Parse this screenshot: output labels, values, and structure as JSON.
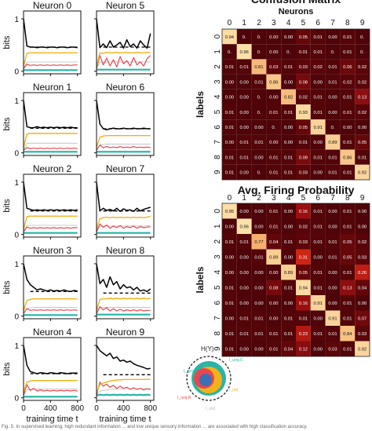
{
  "chart_data": [
    {
      "type": "line",
      "grid": "2x5 small multiples",
      "xlabel": "training time t",
      "ylabel": "bits",
      "xticks": [
        0,
        400,
        800
      ],
      "yticks": [
        0,
        1
      ],
      "xlim": [
        0,
        850
      ],
      "ylim": [
        -0.05,
        1.15
      ],
      "x": [
        0,
        50,
        100,
        150,
        200,
        250,
        300,
        350,
        400,
        450,
        500,
        550,
        600,
        650,
        700,
        750,
        800
      ],
      "series_colors": {
        "H": "#000000",
        "H_ref": "#000000",
        "yellow": "#f2b21a",
        "red": "#e8464f",
        "pink": "#f2a0a8",
        "teal": "#23b5a6",
        "blue": "#3b6fb6",
        "grey": "#b8bcc0"
      },
      "panels": [
        {
          "title": "Neuron 0",
          "H": [
            1.0,
            0.48,
            0.46,
            0.46,
            0.45,
            0.46,
            0.46,
            0.45,
            0.46,
            0.46,
            0.45,
            0.46,
            0.46,
            0.45,
            0.46,
            0.46,
            0.45
          ],
          "ref": 0.46,
          "yellow": [
            0.1,
            0.34,
            0.35,
            0.35,
            0.35,
            0.35,
            0.35,
            0.35,
            0.35,
            0.35,
            0.35,
            0.35,
            0.35,
            0.35,
            0.35,
            0.35,
            0.35
          ],
          "red": [
            0.05,
            0.13,
            0.11,
            0.12,
            0.11,
            0.12,
            0.11,
            0.12,
            0.11,
            0.12,
            0.11,
            0.12,
            0.11,
            0.12,
            0.11,
            0.12,
            0.12
          ],
          "teal": [
            0.02,
            0.02,
            0.02,
            0.02,
            0.02,
            0.02,
            0.02,
            0.02,
            0.02,
            0.02,
            0.02,
            0.02,
            0.02,
            0.02,
            0.02,
            0.02,
            0.02
          ]
        },
        {
          "title": "Neuron 5",
          "H": [
            1.0,
            0.45,
            0.52,
            0.45,
            0.58,
            0.46,
            0.5,
            0.55,
            0.44,
            0.6,
            0.47,
            0.52,
            0.44,
            0.58,
            0.5,
            0.44,
            0.72
          ],
          "ref": 0.46,
          "yellow": [
            0.1,
            0.35,
            0.34,
            0.36,
            0.35,
            0.35,
            0.36,
            0.35,
            0.35,
            0.36,
            0.35,
            0.35,
            0.36,
            0.35,
            0.35,
            0.36,
            0.35
          ],
          "red": [
            0.05,
            0.3,
            0.12,
            0.25,
            0.1,
            0.22,
            0.08,
            0.28,
            0.14,
            0.2,
            0.1,
            0.26,
            0.12,
            0.18,
            0.1,
            0.24,
            0.3
          ],
          "teal": [
            0.03,
            0.03,
            0.03,
            0.03,
            0.03,
            0.03,
            0.03,
            0.03,
            0.03,
            0.03,
            0.03,
            0.03,
            0.03,
            0.03,
            0.03,
            0.03,
            0.03
          ]
        },
        {
          "title": "Neuron 1",
          "H": [
            1.0,
            0.5,
            0.48,
            0.48,
            0.5,
            0.48,
            0.49,
            0.48,
            0.49,
            0.48,
            0.49,
            0.48,
            0.49,
            0.48,
            0.49,
            0.48,
            0.48
          ],
          "ref": 0.47,
          "yellow": [
            0.1,
            0.36,
            0.37,
            0.37,
            0.37,
            0.37,
            0.37,
            0.37,
            0.37,
            0.37,
            0.37,
            0.37,
            0.37,
            0.37,
            0.37,
            0.37,
            0.37
          ],
          "red": [
            0.05,
            0.1,
            0.08,
            0.09,
            0.08,
            0.09,
            0.08,
            0.09,
            0.08,
            0.09,
            0.08,
            0.09,
            0.08,
            0.09,
            0.08,
            0.09,
            0.08
          ],
          "teal": [
            0.02,
            0.02,
            0.02,
            0.02,
            0.02,
            0.02,
            0.02,
            0.02,
            0.02,
            0.02,
            0.02,
            0.02,
            0.02,
            0.02,
            0.02,
            0.02,
            0.02
          ]
        },
        {
          "title": "Neuron 6",
          "H": [
            1.0,
            0.55,
            0.46,
            0.44,
            0.46,
            0.47,
            0.46,
            0.46,
            0.47,
            0.46,
            0.46,
            0.47,
            0.46,
            0.46,
            0.47,
            0.46,
            0.46
          ],
          "ref": 0.46,
          "yellow": [
            0.1,
            0.3,
            0.32,
            0.33,
            0.33,
            0.33,
            0.33,
            0.33,
            0.33,
            0.33,
            0.33,
            0.33,
            0.33,
            0.33,
            0.33,
            0.33,
            0.33
          ],
          "red": [
            0.05,
            0.15,
            0.1,
            0.12,
            0.1,
            0.11,
            0.1,
            0.12,
            0.1,
            0.11,
            0.1,
            0.12,
            0.1,
            0.11,
            0.1,
            0.11,
            0.1
          ],
          "teal": [
            0.02,
            0.02,
            0.02,
            0.02,
            0.02,
            0.02,
            0.02,
            0.02,
            0.02,
            0.02,
            0.02,
            0.02,
            0.02,
            0.02,
            0.02,
            0.02,
            0.02
          ]
        },
        {
          "title": "Neuron 2",
          "H": [
            1.0,
            0.5,
            0.48,
            0.46,
            0.47,
            0.46,
            0.47,
            0.46,
            0.47,
            0.46,
            0.47,
            0.46,
            0.47,
            0.46,
            0.47,
            0.46,
            0.47
          ],
          "ref": 0.45,
          "yellow": [
            0.1,
            0.34,
            0.35,
            0.35,
            0.35,
            0.35,
            0.35,
            0.35,
            0.35,
            0.35,
            0.35,
            0.35,
            0.35,
            0.35,
            0.35,
            0.35,
            0.35
          ],
          "red": [
            0.05,
            0.14,
            0.12,
            0.13,
            0.12,
            0.13,
            0.12,
            0.13,
            0.12,
            0.13,
            0.12,
            0.13,
            0.12,
            0.13,
            0.12,
            0.13,
            0.13
          ],
          "teal": [
            0.03,
            0.03,
            0.03,
            0.03,
            0.03,
            0.03,
            0.03,
            0.03,
            0.03,
            0.03,
            0.03,
            0.03,
            0.03,
            0.03,
            0.03,
            0.03,
            0.03
          ]
        },
        {
          "title": "Neuron 7",
          "H": [
            1.0,
            0.45,
            0.5,
            0.46,
            0.48,
            0.45,
            0.5,
            0.44,
            0.49,
            0.46,
            0.47,
            0.44,
            0.5,
            0.45,
            0.48,
            0.5,
            0.52
          ],
          "ref": 0.45,
          "yellow": [
            0.1,
            0.3,
            0.32,
            0.33,
            0.32,
            0.33,
            0.32,
            0.33,
            0.32,
            0.33,
            0.32,
            0.33,
            0.32,
            0.33,
            0.32,
            0.33,
            0.35
          ],
          "red": [
            0.05,
            0.2,
            0.14,
            0.18,
            0.12,
            0.16,
            0.13,
            0.17,
            0.12,
            0.15,
            0.13,
            0.16,
            0.12,
            0.15,
            0.13,
            0.14,
            0.15
          ],
          "teal": [
            0.03,
            0.03,
            0.03,
            0.03,
            0.03,
            0.03,
            0.03,
            0.03,
            0.03,
            0.03,
            0.03,
            0.03,
            0.03,
            0.03,
            0.03,
            0.03,
            0.03
          ]
        },
        {
          "title": "Neuron 3",
          "H": [
            1.0,
            0.7,
            0.6,
            0.55,
            0.5,
            0.52,
            0.5,
            0.48,
            0.5,
            0.48,
            0.49,
            0.48,
            0.5,
            0.48,
            0.47,
            0.49,
            0.48
          ],
          "ref": 0.47,
          "yellow": [
            0.1,
            0.3,
            0.32,
            0.33,
            0.33,
            0.33,
            0.33,
            0.33,
            0.33,
            0.33,
            0.33,
            0.33,
            0.33,
            0.33,
            0.33,
            0.33,
            0.33
          ],
          "red": [
            0.05,
            0.14,
            0.11,
            0.12,
            0.11,
            0.12,
            0.11,
            0.12,
            0.11,
            0.12,
            0.11,
            0.12,
            0.11,
            0.12,
            0.11,
            0.12,
            0.11
          ],
          "teal": [
            0.02,
            0.02,
            0.02,
            0.02,
            0.02,
            0.02,
            0.02,
            0.02,
            0.02,
            0.02,
            0.02,
            0.02,
            0.02,
            0.02,
            0.02,
            0.02,
            0.02
          ]
        },
        {
          "title": "Neuron 8",
          "H": [
            1.0,
            0.62,
            0.7,
            0.55,
            0.75,
            0.6,
            0.66,
            0.52,
            0.6,
            0.54,
            0.56,
            0.5,
            0.55,
            0.48,
            0.5,
            0.47,
            0.52
          ],
          "ref": 0.44,
          "yellow": [
            0.1,
            0.32,
            0.33,
            0.33,
            0.34,
            0.33,
            0.34,
            0.33,
            0.34,
            0.33,
            0.34,
            0.33,
            0.34,
            0.33,
            0.34,
            0.33,
            0.34
          ],
          "red": [
            0.05,
            0.18,
            0.12,
            0.16,
            0.1,
            0.14,
            0.1,
            0.13,
            0.1,
            0.12,
            0.1,
            0.12,
            0.1,
            0.12,
            0.1,
            0.11,
            0.11
          ],
          "teal": [
            0.03,
            0.03,
            0.03,
            0.03,
            0.03,
            0.03,
            0.03,
            0.03,
            0.03,
            0.03,
            0.03,
            0.03,
            0.03,
            0.03,
            0.03,
            0.03,
            0.03
          ]
        },
        {
          "title": "Neuron 4",
          "H": [
            1.0,
            0.62,
            0.5,
            0.48,
            0.46,
            0.48,
            0.47,
            0.46,
            0.48,
            0.47,
            0.46,
            0.48,
            0.47,
            0.46,
            0.47,
            0.47,
            0.47
          ],
          "ref": 0.46,
          "yellow": [
            0.1,
            0.3,
            0.32,
            0.33,
            0.33,
            0.33,
            0.33,
            0.33,
            0.33,
            0.33,
            0.33,
            0.33,
            0.33,
            0.33,
            0.33,
            0.33,
            0.33
          ],
          "red": [
            0.05,
            0.25,
            0.14,
            0.18,
            0.13,
            0.15,
            0.13,
            0.14,
            0.13,
            0.14,
            0.13,
            0.14,
            0.13,
            0.14,
            0.13,
            0.14,
            0.13
          ],
          "teal": [
            0.02,
            0.02,
            0.02,
            0.02,
            0.02,
            0.02,
            0.02,
            0.02,
            0.02,
            0.02,
            0.02,
            0.02,
            0.02,
            0.02,
            0.02,
            0.02,
            0.02
          ]
        },
        {
          "title": "Neuron 9",
          "H": [
            1.0,
            0.9,
            0.85,
            0.8,
            0.85,
            0.75,
            0.78,
            0.7,
            0.72,
            0.68,
            0.7,
            0.65,
            0.62,
            0.6,
            0.58,
            0.55,
            0.56
          ],
          "ref": 0.44,
          "yellow": [
            0.1,
            0.25,
            0.28,
            0.3,
            0.32,
            0.33,
            0.34,
            0.34,
            0.35,
            0.35,
            0.35,
            0.35,
            0.35,
            0.35,
            0.35,
            0.35,
            0.35
          ],
          "red": [
            0.05,
            0.3,
            0.22,
            0.26,
            0.2,
            0.24,
            0.18,
            0.22,
            0.18,
            0.2,
            0.16,
            0.19,
            0.16,
            0.18,
            0.15,
            0.17,
            0.16
          ],
          "teal": [
            0.04,
            0.06,
            0.05,
            0.06,
            0.05,
            0.06,
            0.05,
            0.06,
            0.05,
            0.06,
            0.05,
            0.06,
            0.05,
            0.06,
            0.05,
            0.06,
            0.05
          ]
        }
      ]
    },
    {
      "type": "heatmap",
      "title": "Confusion Matrix",
      "xlabel": "Neurons",
      "ylabel": "labels",
      "categories": [
        "0",
        "1",
        "2",
        "3",
        "4",
        "5",
        "6",
        "7",
        "8",
        "9"
      ],
      "values": [
        [
          "0.94",
          "0.",
          "0.",
          "0.00",
          "0.00",
          "0.05",
          "0.01",
          "0.00",
          "0.01",
          "0."
        ],
        [
          "0.",
          "0.96",
          "0.",
          "0.00",
          "0.",
          "0.01",
          "0.01",
          "0.",
          "0.01",
          "0."
        ],
        [
          "0.01",
          "0.01",
          "0.81",
          "0.03",
          "0.01",
          "0.03",
          "0.02",
          "0.01",
          "0.06",
          "0.02"
        ],
        [
          "0.00",
          "0.00",
          "0.01",
          "0.86",
          "0.00",
          "0.08",
          "0.00",
          "0.01",
          "0.02",
          "0.02"
        ],
        [
          "0.00",
          "0.00",
          "0.",
          "0.00",
          "0.82",
          "0.02",
          "0.01",
          "0.00",
          "0.01",
          "0.13"
        ],
        [
          "0.01",
          "0.00",
          "0.",
          "0.01",
          "0.01",
          "0.93",
          "0.01",
          "0.00",
          "0.01",
          "0.02"
        ],
        [
          "0.01",
          "0.00",
          "0.00",
          "0.",
          "0.00",
          "0.05",
          "0.91",
          "0.",
          "0.00",
          "0.00"
        ],
        [
          "0.00",
          "0.01",
          "0.01",
          "0.00",
          "0.00",
          "0.01",
          "0.00",
          "0.89",
          "0.01",
          "0.05"
        ],
        [
          "0.01",
          "0.01",
          "0.00",
          "0.01",
          "0.01",
          "0.09",
          "0.01",
          "0.01",
          "0.86",
          "0.01"
        ],
        [
          "0.01",
          "0.00",
          "0.",
          "0.01",
          "0.01",
          "0.03",
          "0.00",
          "0.01",
          "0.01",
          "0.92"
        ]
      ]
    },
    {
      "type": "heatmap",
      "title": "Avg. Firing Probability",
      "ylabel": "labels",
      "categories": [
        "0",
        "1",
        "2",
        "3",
        "4",
        "5",
        "6",
        "7",
        "8",
        "9"
      ],
      "values": [
        [
          "0.95",
          "0.00",
          "0.00",
          "0.01",
          "0.00",
          "0.16",
          "0.01",
          "0.00",
          "0.01",
          "0.00"
        ],
        [
          "0.00",
          "0.96",
          "0.00",
          "0.01",
          "0.00",
          "0.02",
          "0.01",
          "0.00",
          "0.01",
          "0.00"
        ],
        [
          "0.01",
          "0.01",
          "0.77",
          "0.04",
          "0.01",
          "0.03",
          "0.01",
          "0.01",
          "0.05",
          "0.02"
        ],
        [
          "0.00",
          "0.00",
          "0.01",
          "0.89",
          "0.00",
          "0.31",
          "0.00",
          "0.01",
          "0.05",
          "0.03"
        ],
        [
          "0.00",
          "0.00",
          "0.00",
          "0.00",
          "0.89",
          "0.05",
          "0.01",
          "0.00",
          "0.01",
          "0.26"
        ],
        [
          "0.01",
          "0.00",
          "0.00",
          "0.08",
          "0.01",
          "0.94",
          "0.01",
          "0.00",
          "0.13",
          "0.04"
        ],
        [
          "0.01",
          "0.00",
          "0.00",
          "0.00",
          "0.00",
          "0.16",
          "0.91",
          "0.00",
          "0.01",
          "0.00"
        ],
        [
          "0.00",
          "0.01",
          "0.01",
          "0.00",
          "0.01",
          "0.01",
          "0.00",
          "0.91",
          "0.01",
          "0.07"
        ],
        [
          "0.01",
          "0.01",
          "0.01",
          "0.01",
          "0.01",
          "0.23",
          "0.01",
          "0.01",
          "0.84",
          "0.03"
        ],
        [
          "0.01",
          "0.00",
          "0.00",
          "0.01",
          "0.04",
          "0.12",
          "0.00",
          "0.03",
          "0.01",
          "0.92"
        ]
      ]
    }
  ],
  "venn": {
    "label_hy": "H(Y)",
    "label_uniq_c": "I_unq,C",
    "label_syn": "I_syn",
    "label_red": "I_red",
    "label_uniq_r": "I_unq,R",
    "label_shd": "I_shd"
  },
  "caption": "Fig. 5. In supervised learning, high redundant information ... and low unique sensory information ... are associated with high classification accuracy."
}
